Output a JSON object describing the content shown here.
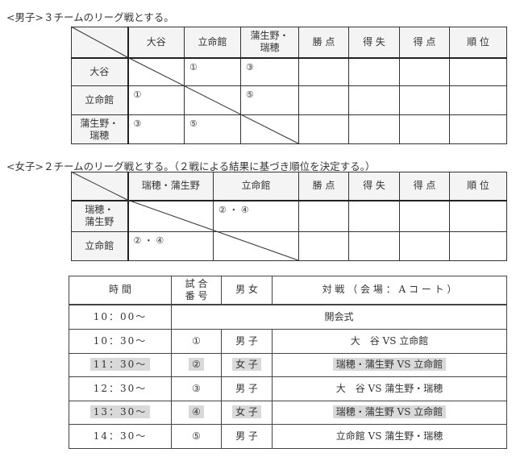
{
  "men": {
    "caption": "<男子>３チームのリーグ戦とする。",
    "headers": [
      "大谷",
      "立命館",
      "蒲生野・\n瑞穂",
      "勝 点",
      "得 失",
      "得 点",
      "順 位"
    ],
    "rows": [
      {
        "team": "大谷",
        "cells": [
          "",
          "①",
          "③",
          "",
          "",
          "",
          ""
        ]
      },
      {
        "team": "立命館",
        "cells": [
          "①",
          "",
          "⑤",
          "",
          "",
          "",
          ""
        ]
      },
      {
        "team": "蒲生野・\n瑞穂",
        "cells": [
          "③",
          "⑤",
          "",
          "",
          "",
          "",
          ""
        ]
      }
    ]
  },
  "women": {
    "caption": "<女子>２チームのリーグ戦とする。（２戦による結果に基づき順位を決定する。）",
    "headers": [
      "瑞穂・蒲生野",
      "立命館",
      "勝 点",
      "得 失",
      "得 点",
      "順 位"
    ],
    "rows": [
      {
        "team": "瑞穂・\n蒲生野",
        "cells": [
          "",
          "② ・ ④",
          "",
          "",
          "",
          ""
        ]
      },
      {
        "team": "立命館",
        "cells": [
          "② ・ ④",
          "",
          "",
          "",
          "",
          ""
        ]
      }
    ]
  },
  "schedule": {
    "headers": [
      "時 間",
      "試 合\n番 号",
      "男 女",
      "対 戦 （ 会 場 ： A コ ー ト ）"
    ],
    "opening": {
      "time": "10：00～",
      "label": "開会式"
    },
    "rows": [
      {
        "time": "10：30～",
        "no": "①",
        "gender": "男 子",
        "match": "大　谷 VS 立命館",
        "highlight": false
      },
      {
        "time": "11：30～",
        "no": "②",
        "gender": "女 子",
        "match": "瑞穂・蒲生野 VS 立命館",
        "highlight": true
      },
      {
        "time": "12：30～",
        "no": "③",
        "gender": "男 子",
        "match": "大　谷 VS 蒲生野・瑞穂",
        "highlight": false
      },
      {
        "time": "13：30～",
        "no": "④",
        "gender": "女 子",
        "match": "瑞穂・蒲生野 VS 立命館",
        "highlight": true
      },
      {
        "time": "14：30～",
        "no": "⑤",
        "gender": "男 子",
        "match": "立命館 VS 蒲生野・瑞穂",
        "highlight": false
      }
    ],
    "highlight_color": "#d9d9d9"
  }
}
